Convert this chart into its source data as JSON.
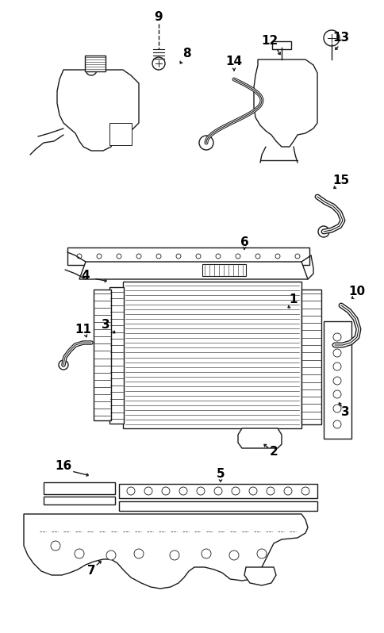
{
  "bg_color": "#ffffff",
  "line_color": "#1a1a1a",
  "label_color": "#000000",
  "figsize": [
    4.85,
    7.98
  ],
  "dpi": 100,
  "lw": 1.0
}
